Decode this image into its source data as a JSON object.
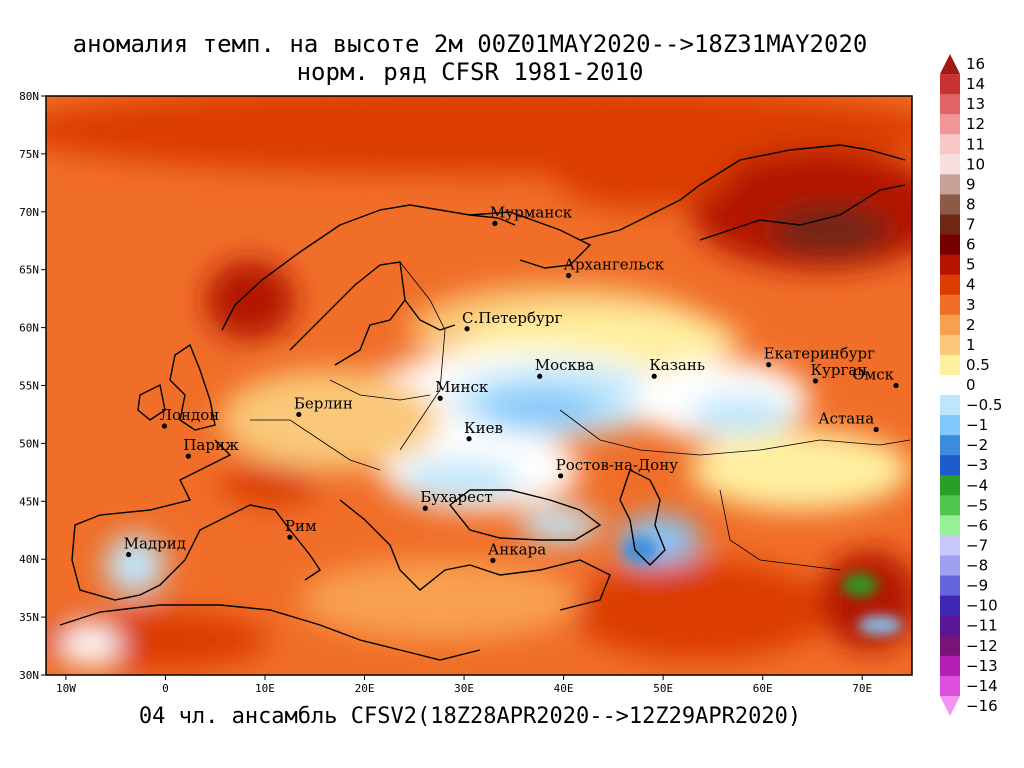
{
  "title_line1": "аномалия темп. на высоте 2м 00Z01MAY2020-->18Z31MAY2020",
  "title_line2": "норм. ряд CFSR 1981-2010",
  "footer": "04 чл. ансамбль CFSV2(18Z28APR2020-->12Z29APR2020)",
  "lat_labels": [
    "80N",
    "75N",
    "70N",
    "65N",
    "60N",
    "55N",
    "50N",
    "45N",
    "40N",
    "35N",
    "30N"
  ],
  "lon_labels": [
    "10W",
    "0",
    "10E",
    "20E",
    "30E",
    "40E",
    "50E",
    "60E",
    "70E"
  ],
  "lat_values": [
    80,
    75,
    70,
    65,
    60,
    55,
    50,
    45,
    40,
    35,
    30
  ],
  "lon_values": [
    -10,
    0,
    10,
    20,
    30,
    40,
    50,
    60,
    70
  ],
  "extent": {
    "lon_min": -12,
    "lon_max": 75,
    "lat_min": 30,
    "lat_max": 80
  },
  "cities": [
    {
      "name": "Мурманск",
      "lon": 33.1,
      "lat": 69.0
    },
    {
      "name": "Архангельск",
      "lon": 40.5,
      "lat": 64.5
    },
    {
      "name": "С.Петербург",
      "lon": 30.3,
      "lat": 59.9
    },
    {
      "name": "Москва",
      "lon": 37.6,
      "lat": 55.8
    },
    {
      "name": "Казань",
      "lon": 49.1,
      "lat": 55.8
    },
    {
      "name": "Екатеринбург",
      "lon": 60.6,
      "lat": 56.8
    },
    {
      "name": "Курган",
      "lon": 65.3,
      "lat": 55.4
    },
    {
      "name": "Омск",
      "lon": 73.4,
      "lat": 55.0
    },
    {
      "name": "Минск",
      "lon": 27.6,
      "lat": 53.9
    },
    {
      "name": "Берлин",
      "lon": 13.4,
      "lat": 52.5
    },
    {
      "name": "Лондон",
      "lon": -0.1,
      "lat": 51.5
    },
    {
      "name": "Париж",
      "lon": 2.3,
      "lat": 48.9
    },
    {
      "name": "Киев",
      "lon": 30.5,
      "lat": 50.4
    },
    {
      "name": "Астана",
      "lon": 71.4,
      "lat": 51.2
    },
    {
      "name": "Ростов-на-Дону",
      "lon": 39.7,
      "lat": 47.2
    },
    {
      "name": "Бухарест",
      "lon": 26.1,
      "lat": 44.4
    },
    {
      "name": "Рим",
      "lon": 12.5,
      "lat": 41.9
    },
    {
      "name": "Мадрид",
      "lon": -3.7,
      "lat": 40.4
    },
    {
      "name": "Анкара",
      "lon": 32.9,
      "lat": 39.9
    }
  ],
  "colorbar": {
    "levels": [
      "16",
      "14",
      "13",
      "12",
      "11",
      "10",
      "9",
      "8",
      "7",
      "6",
      "5",
      "4",
      "3",
      "2",
      "1",
      "0.5",
      "0",
      "−0.5",
      "−1",
      "−2",
      "−3",
      "−4",
      "−5",
      "−6",
      "−7",
      "−8",
      "−9",
      "−10",
      "−11",
      "−12",
      "−13",
      "−14",
      "−16"
    ],
    "colors": [
      "#a01818",
      "#c83232",
      "#e06464",
      "#f09696",
      "#f8c8c8",
      "#f8e0e0",
      "#c8a096",
      "#8c5a46",
      "#6e2814",
      "#780000",
      "#b41400",
      "#dc3c00",
      "#f06e28",
      "#f8a050",
      "#fac878",
      "#fff0a0",
      "#ffffff",
      "#bee6fa",
      "#82c8fa",
      "#3c8cdc",
      "#1e5ac8",
      "#28a028",
      "#50c850",
      "#96f096",
      "#c8c8fa",
      "#a0a0f0",
      "#6464dc",
      "#3c28b4",
      "#5a1496",
      "#781478",
      "#b41eb4",
      "#dc50dc",
      "#f096f0"
    ]
  }
}
